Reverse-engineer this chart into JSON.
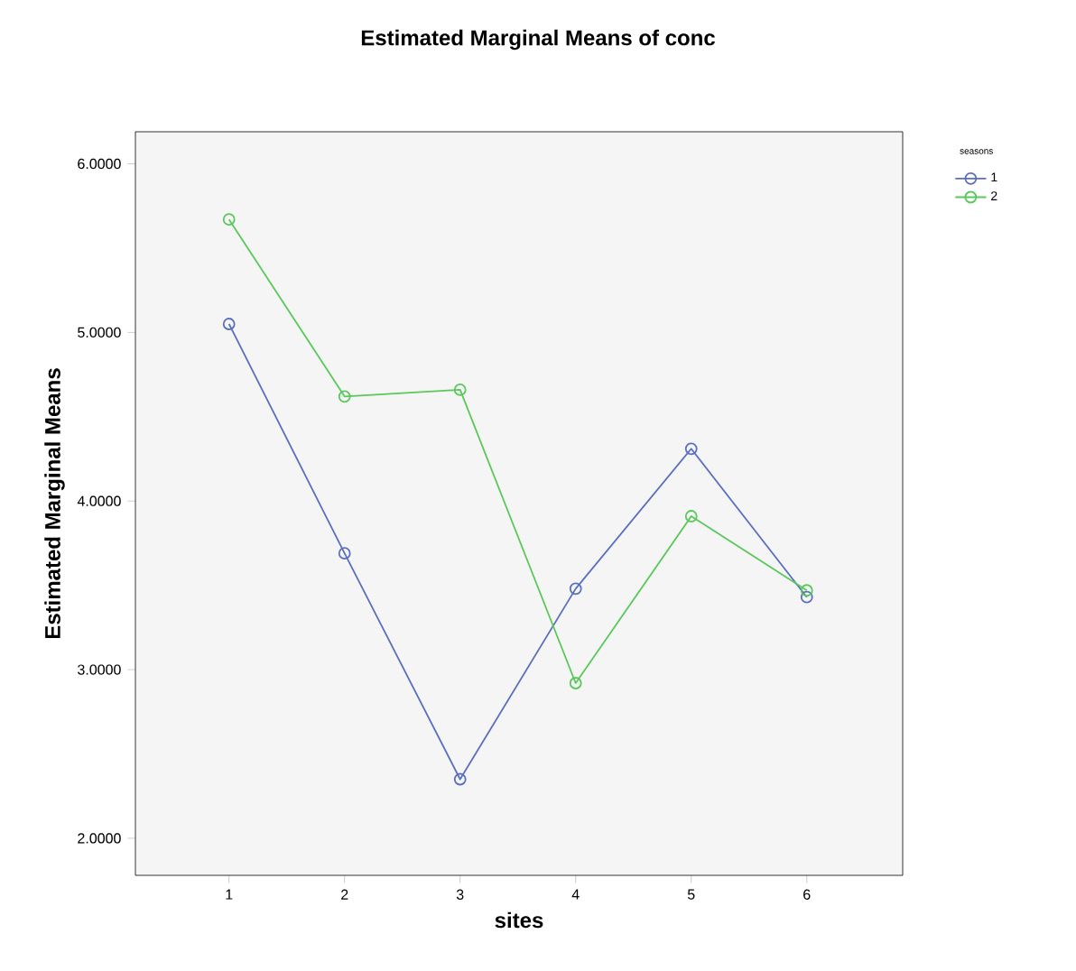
{
  "chart_data": {
    "type": "line",
    "title": "Estimated Marginal Means of conc",
    "xlabel": "sites",
    "ylabel": "Estimated Marginal Means",
    "legend_title": "seasons",
    "categories": [
      "1",
      "2",
      "3",
      "4",
      "5",
      "6"
    ],
    "series": [
      {
        "name": "1",
        "color": "#5a6fbf",
        "values": [
          5.05,
          3.69,
          2.35,
          3.48,
          4.31,
          3.43
        ]
      },
      {
        "name": "2",
        "color": "#5ac85a",
        "values": [
          5.67,
          4.62,
          4.66,
          2.92,
          3.91,
          3.47
        ]
      }
    ],
    "ylim": [
      1.78,
      6.19
    ],
    "yticks": [
      {
        "value": 2,
        "label": "2.0000"
      },
      {
        "value": 3,
        "label": "3.0000"
      },
      {
        "value": 4,
        "label": "4.0000"
      },
      {
        "value": 5,
        "label": "5.0000"
      },
      {
        "value": 6,
        "label": "6.0000"
      }
    ],
    "legend": "top right",
    "marker": "circle",
    "line_style": "solid"
  }
}
